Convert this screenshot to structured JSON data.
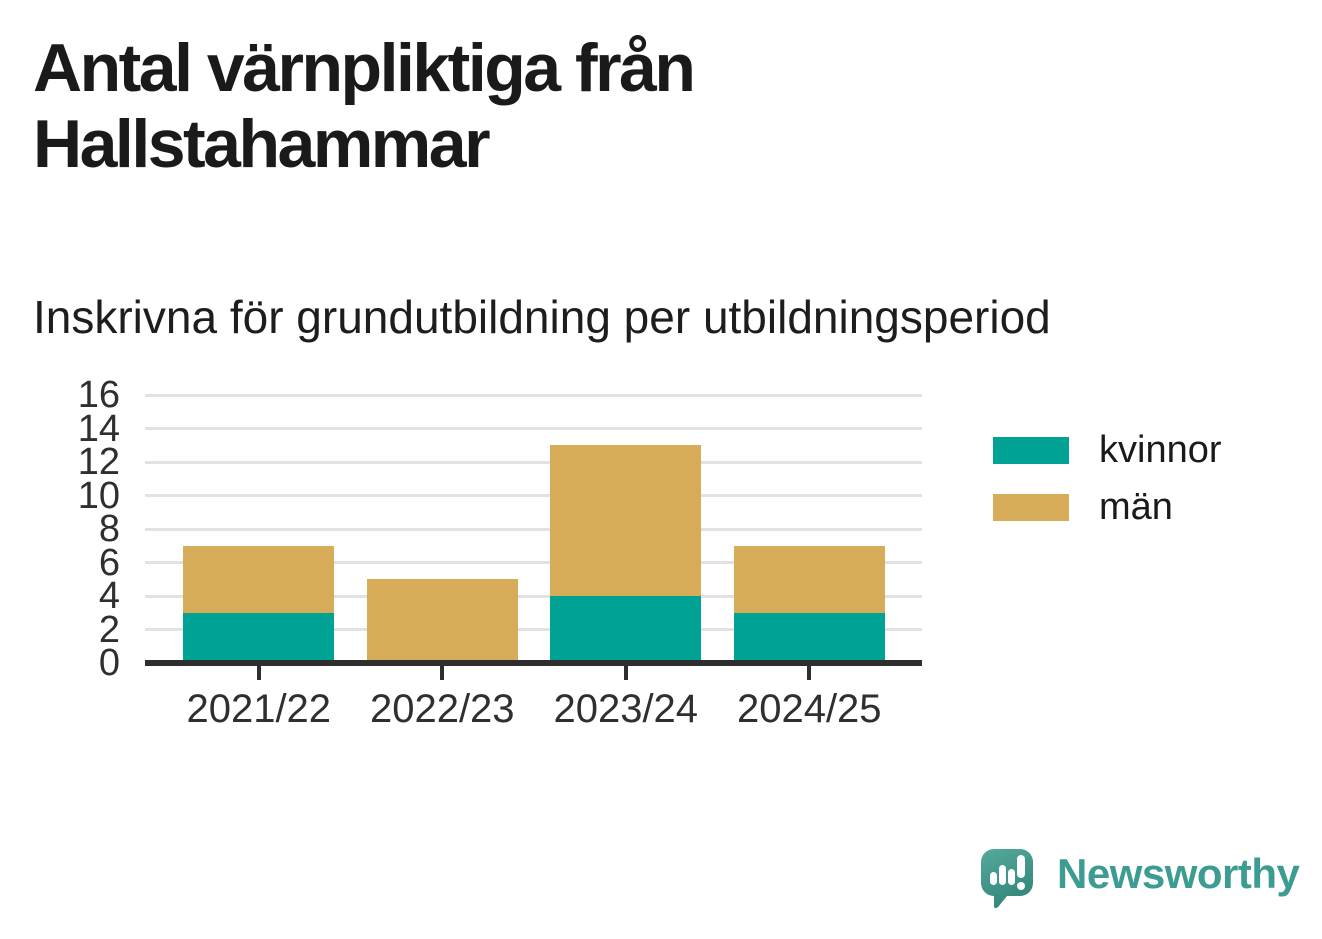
{
  "header": {
    "title": "Antal värnpliktiga från Hallstahammar",
    "subtitle": "Inskrivna för grundutbildning per utbildningsperiod"
  },
  "chart_data": {
    "type": "bar",
    "stacked": true,
    "title": "Antal värnpliktiga från Hallstahammar",
    "subtitle": "Inskrivna för grundutbildning per utbildningsperiod",
    "categories": [
      "2021/22",
      "2022/23",
      "2023/24",
      "2024/25"
    ],
    "series": [
      {
        "name": "kvinnor",
        "color": "#00a294",
        "values": [
          3,
          0,
          4,
          3
        ]
      },
      {
        "name": "män",
        "color": "#d7ac58",
        "values": [
          4,
          5,
          9,
          4
        ]
      }
    ],
    "totals": [
      7,
      5,
      13,
      7
    ],
    "xlabel": "",
    "ylabel": "",
    "ylim": [
      0,
      16
    ],
    "y_ticks": [
      0,
      2,
      4,
      6,
      8,
      10,
      12,
      14,
      16
    ],
    "grid": true,
    "legend_position": "right"
  },
  "colors": {
    "kvinnor": "#00a294",
    "man": "#d7ac58",
    "axis": "#2e2e2e",
    "gridline": "#e2e2e2",
    "text_dark": "#1a1a1a",
    "brand_teal": "#3c9c92"
  },
  "footer": {
    "brand": "Newsworthy"
  }
}
